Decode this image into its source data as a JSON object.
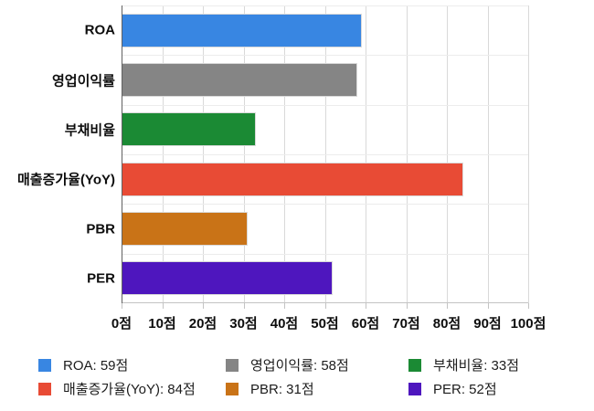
{
  "chart_data": {
    "type": "bar",
    "orientation": "horizontal",
    "title": "",
    "xlabel": "",
    "ylabel": "",
    "unit": "점",
    "categories": [
      "ROA",
      "영업이익률",
      "부채비율",
      "매출증가율(YoY)",
      "PBR",
      "PER"
    ],
    "values": [
      59,
      58,
      33,
      84,
      31,
      52
    ],
    "colors": [
      "#3886E2",
      "#858585",
      "#1B8A34",
      "#E84B35",
      "#C97317",
      "#4E16BE"
    ],
    "xlim": [
      0,
      100
    ],
    "x_ticks": [
      "0점",
      "10점",
      "20점",
      "30점",
      "40점",
      "50점",
      "60점",
      "70점",
      "80점",
      "90점",
      "100점"
    ],
    "grid": true,
    "legend_position": "bottom",
    "legend": [
      "ROA: 59점",
      "영업이익률: 58점",
      "부채비율: 33점",
      "매출증가율(YoY): 84점",
      "PBR: 31점",
      "PER: 52점"
    ]
  }
}
